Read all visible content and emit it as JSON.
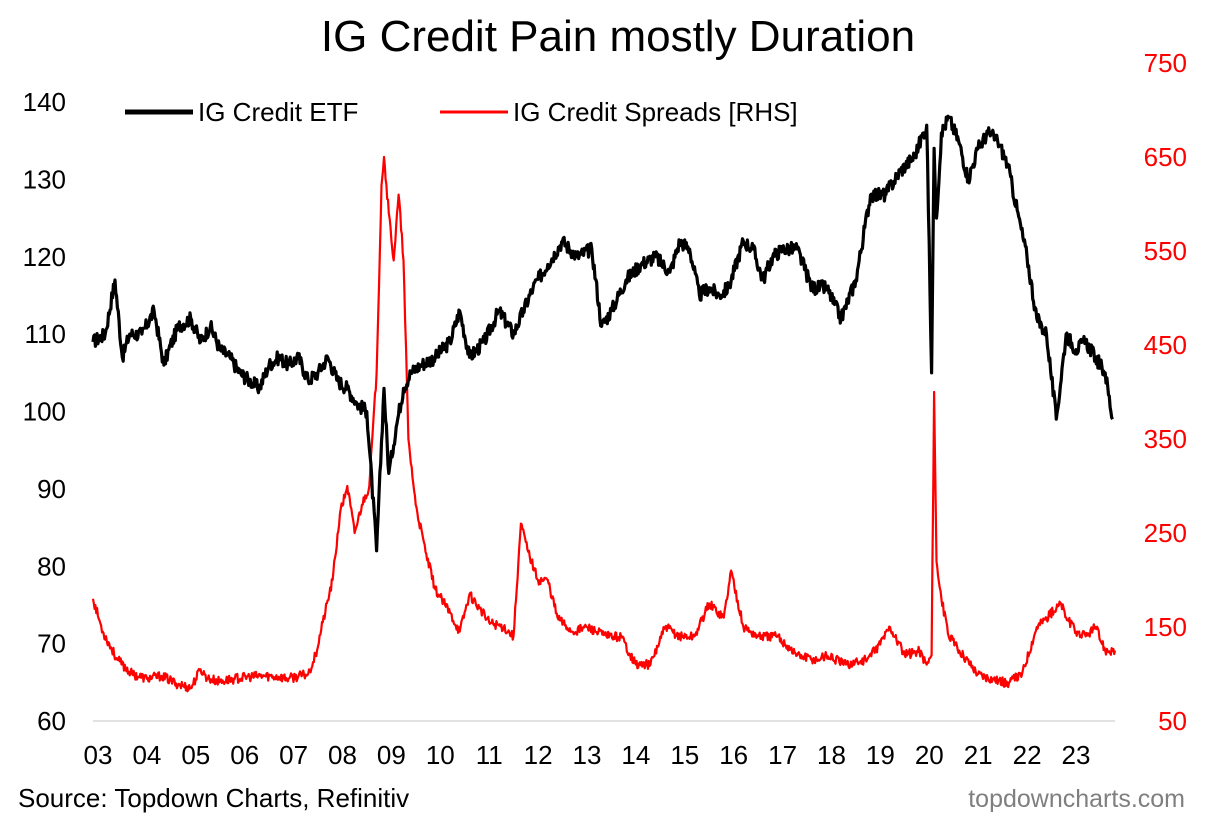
{
  "chart_data": {
    "type": "line",
    "title": "IG Credit Pain mostly Duration",
    "xlabel": "",
    "x_ticks": [
      "03",
      "04",
      "05",
      "06",
      "07",
      "08",
      "09",
      "10",
      "11",
      "12",
      "13",
      "14",
      "15",
      "16",
      "17",
      "18",
      "19",
      "20",
      "21",
      "22",
      "23"
    ],
    "x_range": [
      2003.0,
      2023.9
    ],
    "left_axis": {
      "ylim": [
        60,
        140
      ],
      "ticks": [
        "60",
        "70",
        "80",
        "90",
        "100",
        "110",
        "120",
        "130",
        "140"
      ]
    },
    "right_axis": {
      "ylim": [
        50,
        750
      ],
      "ticks": [
        "50",
        "150",
        "250",
        "350",
        "450",
        "550",
        "650",
        "750"
      ]
    },
    "legend": {
      "placement": "top-left"
    },
    "grid": false,
    "series": [
      {
        "name": "IG Credit ETF",
        "axis": "left",
        "color": "#000000",
        "x": [
          2003.0,
          2003.25,
          2003.45,
          2003.6,
          2003.75,
          2004.0,
          2004.25,
          2004.45,
          2004.55,
          2004.75,
          2005.0,
          2005.2,
          2005.4,
          2005.6,
          2005.8,
          2006.0,
          2006.2,
          2006.4,
          2006.6,
          2006.8,
          2007.0,
          2007.2,
          2007.4,
          2007.6,
          2007.8,
          2008.0,
          2008.2,
          2008.4,
          2008.6,
          2008.8,
          2008.95,
          2009.05,
          2009.2,
          2009.35,
          2009.5,
          2009.7,
          2010.0,
          2010.3,
          2010.5,
          2010.7,
          2011.0,
          2011.3,
          2011.6,
          2011.8,
          2012.0,
          2012.3,
          2012.6,
          2012.9,
          2013.2,
          2013.4,
          2013.6,
          2013.9,
          2014.2,
          2014.5,
          2014.8,
          2015.0,
          2015.2,
          2015.4,
          2015.6,
          2015.8,
          2016.0,
          2016.3,
          2016.5,
          2016.7,
          2016.9,
          2017.1,
          2017.4,
          2017.7,
          2018.0,
          2018.3,
          2018.6,
          2018.9,
          2019.2,
          2019.5,
          2019.8,
          2020.05,
          2020.15,
          2020.2,
          2020.25,
          2020.35,
          2020.5,
          2020.7,
          2020.9,
          2021.1,
          2021.3,
          2021.5,
          2021.7,
          2021.9,
          2022.1,
          2022.3,
          2022.5,
          2022.7,
          2022.9,
          2023.1,
          2023.3,
          2023.5,
          2023.7,
          2023.85
        ],
        "values": [
          109,
          110,
          117,
          107,
          110,
          110,
          113,
          106,
          108,
          111,
          112,
          109,
          111,
          108,
          107,
          105,
          104,
          103,
          106,
          107,
          106,
          107,
          104,
          105,
          107,
          104,
          103,
          101,
          100,
          82,
          103,
          92,
          98,
          103,
          105,
          106,
          107,
          109,
          113,
          107,
          109,
          113,
          110,
          113,
          116,
          119,
          122,
          120,
          121,
          111,
          113,
          117,
          119,
          120,
          118,
          122,
          121,
          115,
          116,
          115,
          116,
          122,
          121,
          117,
          120,
          121,
          121,
          116,
          116,
          112,
          117,
          128,
          128,
          131,
          133,
          137,
          105,
          134,
          125,
          136,
          138,
          135,
          130,
          134,
          136,
          135,
          132,
          126,
          120,
          112,
          110,
          99,
          110,
          108,
          109,
          107,
          105,
          99
        ],
        "values_note": "approximate readings"
      },
      {
        "name": "IG Credit Spreads [RHS]",
        "axis": "right",
        "color": "#ff0000",
        "x": [
          2003.0,
          2003.2,
          2003.5,
          2003.8,
          2004.1,
          2004.4,
          2004.7,
          2005.0,
          2005.2,
          2005.35,
          2005.6,
          2005.9,
          2006.2,
          2006.5,
          2006.8,
          2007.0,
          2007.4,
          2007.55,
          2007.7,
          2007.9,
          2008.05,
          2008.2,
          2008.35,
          2008.5,
          2008.65,
          2008.8,
          2008.9,
          2008.95,
          2009.05,
          2009.15,
          2009.25,
          2009.35,
          2009.45,
          2009.6,
          2009.8,
          2010.0,
          2010.3,
          2010.5,
          2010.7,
          2010.9,
          2011.1,
          2011.4,
          2011.6,
          2011.75,
          2011.9,
          2012.1,
          2012.3,
          2012.5,
          2012.8,
          2013.1,
          2013.5,
          2013.8,
          2014.1,
          2014.4,
          2014.7,
          2015.0,
          2015.3,
          2015.6,
          2015.9,
          2016.05,
          2016.3,
          2016.6,
          2017.0,
          2017.4,
          2017.8,
          2018.0,
          2018.4,
          2018.8,
          2019.0,
          2019.3,
          2019.6,
          2019.9,
          2020.05,
          2020.15,
          2020.2,
          2020.25,
          2020.35,
          2020.5,
          2020.8,
          2021.1,
          2021.4,
          2021.7,
          2022.0,
          2022.3,
          2022.5,
          2022.8,
          2022.9,
          2023.1,
          2023.3,
          2023.5,
          2023.7,
          2023.9
        ],
        "values": [
          180,
          145,
          115,
          100,
          95,
          98,
          90,
          85,
          105,
          95,
          92,
          95,
          97,
          98,
          97,
          95,
          100,
          120,
          155,
          200,
          270,
          300,
          250,
          280,
          300,
          420,
          620,
          650,
          590,
          540,
          610,
          540,
          350,
          280,
          230,
          190,
          165,
          145,
          185,
          170,
          155,
          150,
          140,
          260,
          230,
          200,
          200,
          160,
          145,
          150,
          140,
          140,
          110,
          110,
          150,
          140,
          140,
          175,
          160,
          210,
          150,
          140,
          140,
          120,
          115,
          120,
          110,
          115,
          125,
          150,
          120,
          125,
          110,
          120,
          400,
          220,
          180,
          140,
          120,
          100,
          95,
          90,
          100,
          150,
          160,
          175,
          160,
          145,
          140,
          150,
          125,
          125
        ]
      }
    ]
  },
  "source_label": "Source: Topdown Charts, Refinitiv",
  "watermark": "topdowncharts.com"
}
